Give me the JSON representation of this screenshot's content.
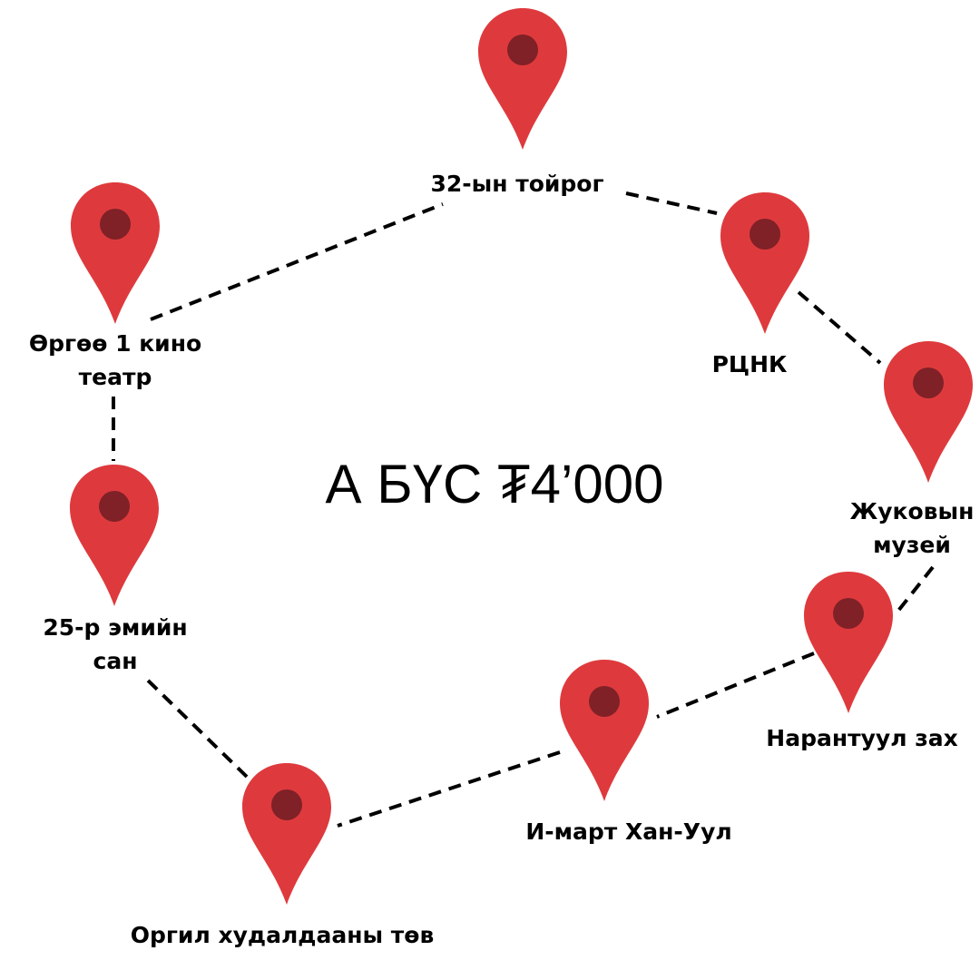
{
  "title": "А БҮС ₮4’000",
  "colors": {
    "pin_fill": "#de3a3d",
    "pin_dot": "#7f2127",
    "route_line": "#000000",
    "text": "#000000",
    "background": "#ffffff"
  },
  "pin_icon": "map-marker-icon",
  "stops": [
    {
      "id": "32-yn-toirog",
      "lines": [
        "32-ын тойрог"
      ]
    },
    {
      "id": "rtsnk",
      "lines": [
        "РЦНК"
      ]
    },
    {
      "id": "zhukovyn-muzei",
      "lines": [
        "Жуковын",
        "музей"
      ]
    },
    {
      "id": "narantuul-zakh",
      "lines": [
        "Нарантуул зах"
      ]
    },
    {
      "id": "i-mart-khan-uul",
      "lines": [
        "И-март Хан-Уул"
      ]
    },
    {
      "id": "orgil-khudaldaany-tov",
      "lines": [
        "Оргил худалдааны төв"
      ]
    },
    {
      "id": "25-r-emiin-san",
      "lines": [
        "25-р эмийн",
        "сан"
      ]
    },
    {
      "id": "orgoo-1-kino-teatr",
      "lines": [
        "Өргөө 1 кино",
        "театр"
      ]
    }
  ]
}
